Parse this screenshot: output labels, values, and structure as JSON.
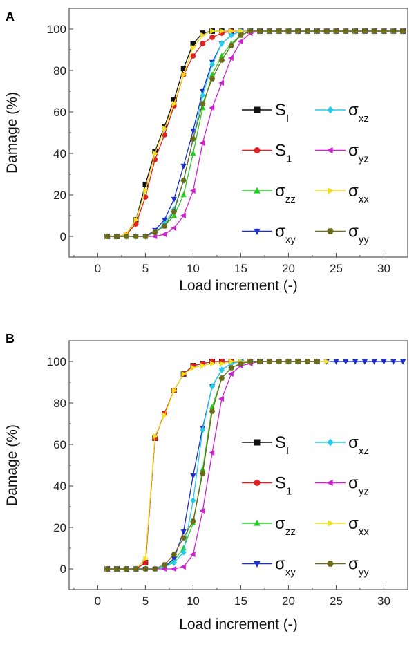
{
  "chart_data": [
    {
      "type": "line",
      "panel_label": "A",
      "xlabel": "Load increment (-)",
      "ylabel": "Damage (%)",
      "xlim": [
        -3,
        32.5
      ],
      "ylim": [
        -10,
        110
      ],
      "x_ticks": [
        0,
        5,
        10,
        15,
        20,
        25,
        30
      ],
      "y_ticks": [
        0,
        20,
        40,
        60,
        80,
        100
      ],
      "x_tick_labels": [
        "0",
        "5",
        "10",
        "15",
        "20",
        "25",
        "30"
      ],
      "y_tick_labels": [
        "0",
        "20",
        "40",
        "60",
        "80",
        "100"
      ],
      "x": [
        1,
        2,
        3,
        4,
        5,
        6,
        7,
        8,
        9,
        10,
        11,
        12,
        13,
        14,
        15,
        16,
        17,
        18,
        19,
        20,
        21,
        22,
        23,
        24,
        25,
        26,
        27,
        28,
        29,
        30,
        31,
        32
      ],
      "series": [
        {
          "name": "SI",
          "label_main": "S",
          "label_sub": "I",
          "color": "#111111",
          "marker": "square",
          "values": [
            0,
            0,
            1,
            8,
            25,
            41,
            53,
            66,
            81,
            93,
            98,
            99,
            99,
            99,
            99,
            99,
            99,
            99,
            99,
            99,
            99,
            99,
            99,
            99,
            99,
            99,
            99,
            99,
            99,
            99,
            99,
            99
          ]
        },
        {
          "name": "S1",
          "label_main": "S",
          "label_sub": "1",
          "color": "#e02020",
          "marker": "circle",
          "values": [
            0,
            0,
            1,
            6,
            19,
            37,
            49,
            63,
            78,
            87,
            93,
            96,
            98,
            99,
            99,
            99,
            99,
            99,
            99,
            99,
            99,
            99,
            99,
            99,
            99,
            99,
            99,
            99,
            99,
            99,
            99,
            99
          ]
        },
        {
          "name": "σzz",
          "label_main": "σ",
          "label_sub": "zz",
          "color": "#22cc22",
          "marker": "triangle-up",
          "values": [
            0,
            0,
            0,
            0,
            0,
            2,
            5,
            10,
            20,
            40,
            62,
            78,
            87,
            93,
            97,
            99,
            99,
            99,
            99,
            99,
            99,
            99,
            99,
            99,
            99,
            99,
            99,
            99,
            99,
            99,
            99,
            99
          ]
        },
        {
          "name": "σxy",
          "label_main": "σ",
          "label_sub": "xy",
          "color": "#1a2ec8",
          "marker": "triangle-down",
          "values": [
            0,
            0,
            0,
            0,
            0,
            3,
            8,
            18,
            34,
            51,
            70,
            84,
            93,
            97,
            99,
            99,
            99,
            99,
            99,
            99,
            99,
            99,
            99,
            99,
            99,
            99,
            99,
            99,
            99,
            99,
            99,
            99
          ]
        },
        {
          "name": "σxz",
          "label_main": "σ",
          "label_sub": "xz",
          "color": "#22cce8",
          "marker": "diamond",
          "values": [
            0,
            0,
            0,
            0,
            0,
            2,
            6,
            13,
            27,
            47,
            68,
            83,
            93,
            97,
            99,
            99,
            99,
            99,
            99,
            99,
            99,
            99,
            99,
            99,
            99,
            99,
            99,
            99,
            99,
            99,
            99,
            99
          ]
        },
        {
          "name": "σyz",
          "label_main": "σ",
          "label_sub": "yz",
          "color": "#cc22cc",
          "marker": "triangle-left",
          "values": [
            0,
            0,
            0,
            0,
            0,
            0,
            1,
            4,
            10,
            22,
            45,
            62,
            74,
            86,
            94,
            98,
            99,
            99,
            99,
            99,
            99,
            99,
            99,
            99,
            99,
            99,
            99,
            99,
            99,
            99,
            99,
            99
          ]
        },
        {
          "name": "σxx",
          "label_main": "σ",
          "label_sub": "xx",
          "color": "#f0e020",
          "marker": "triangle-right",
          "values": [
            0,
            0,
            1,
            8,
            22,
            40,
            52,
            64,
            78,
            91,
            97,
            99,
            99,
            99,
            99,
            99,
            99,
            99,
            99,
            99,
            99,
            99,
            99,
            99,
            99,
            99,
            99,
            99,
            99,
            99,
            99,
            99
          ]
        },
        {
          "name": "σyy",
          "label_main": "σ",
          "label_sub": "yy",
          "color": "#6b6b1a",
          "marker": "hexagon",
          "values": [
            0,
            0,
            0,
            0,
            0,
            2,
            5,
            12,
            27,
            47,
            64,
            76,
            85,
            92,
            97,
            99,
            99,
            99,
            99,
            99,
            99,
            99,
            99,
            99,
            99,
            99,
            99,
            99,
            99,
            99,
            99,
            99
          ]
        }
      ]
    },
    {
      "type": "line",
      "panel_label": "B",
      "xlabel": "Load increment (-)",
      "ylabel": "Damage (%)",
      "xlim": [
        -3,
        32.5
      ],
      "ylim": [
        -10,
        110
      ],
      "x_ticks": [
        0,
        5,
        10,
        15,
        20,
        25,
        30
      ],
      "y_ticks": [
        0,
        20,
        40,
        60,
        80,
        100
      ],
      "x_tick_labels": [
        "0",
        "5",
        "10",
        "15",
        "20",
        "25",
        "30"
      ],
      "y_tick_labels": [
        "0",
        "20",
        "40",
        "60",
        "80",
        "100"
      ],
      "x": [
        1,
        2,
        3,
        4,
        5,
        6,
        7,
        8,
        9,
        10,
        11,
        12,
        13,
        14,
        15,
        16,
        17,
        18,
        19,
        20,
        21,
        22,
        23,
        24,
        25,
        26,
        27,
        28,
        29,
        30,
        31,
        32
      ],
      "series": [
        {
          "name": "SI",
          "label_main": "S",
          "label_sub": "I",
          "color": "#111111",
          "marker": "square",
          "values": [
            0,
            0,
            0,
            0,
            3,
            63,
            75,
            86,
            94,
            98,
            99,
            100,
            100,
            100,
            100,
            100,
            100,
            100,
            100,
            100,
            100,
            100,
            100,
            null,
            null,
            null,
            null,
            null,
            null,
            null,
            null,
            null
          ]
        },
        {
          "name": "S1",
          "label_main": "S",
          "label_sub": "1",
          "color": "#e02020",
          "marker": "circle",
          "values": [
            0,
            0,
            0,
            0,
            3,
            63,
            75,
            86,
            94,
            98,
            99,
            100,
            100,
            100,
            100,
            100,
            100,
            100,
            100,
            100,
            100,
            100,
            100,
            null,
            null,
            null,
            null,
            null,
            null,
            null,
            null,
            null
          ]
        },
        {
          "name": "σzz",
          "label_main": "σ",
          "label_sub": "zz",
          "color": "#22cc22",
          "marker": "triangle-up",
          "values": [
            0,
            0,
            0,
            0,
            0,
            0,
            1,
            4,
            10,
            22,
            48,
            78,
            92,
            97,
            99,
            100,
            100,
            100,
            100,
            100,
            100,
            100,
            100,
            null,
            null,
            null,
            null,
            null,
            null,
            null,
            null,
            null
          ]
        },
        {
          "name": "σxy",
          "label_main": "σ",
          "label_sub": "xy",
          "color": "#1a2ec8",
          "marker": "triangle-down",
          "values": [
            0,
            0,
            0,
            0,
            0,
            0,
            1,
            5,
            18,
            45,
            68,
            88,
            96,
            99,
            100,
            100,
            100,
            100,
            100,
            100,
            100,
            100,
            100,
            100,
            100,
            100,
            100,
            100,
            100,
            100,
            100,
            100
          ]
        },
        {
          "name": "σxz",
          "label_main": "σ",
          "label_sub": "xz",
          "color": "#22cce8",
          "marker": "diamond",
          "values": [
            0,
            0,
            0,
            0,
            0,
            0,
            1,
            3,
            8,
            33,
            67,
            88,
            96,
            99,
            100,
            100,
            100,
            100,
            100,
            100,
            100,
            100,
            100,
            null,
            null,
            null,
            null,
            null,
            null,
            null,
            null,
            null
          ]
        },
        {
          "name": "σyz",
          "label_main": "σ",
          "label_sub": "yz",
          "color": "#cc22cc",
          "marker": "triangle-left",
          "values": [
            0,
            0,
            0,
            0,
            0,
            0,
            0,
            0,
            1,
            7,
            28,
            56,
            82,
            94,
            98,
            99,
            100,
            100,
            100,
            100,
            100,
            100,
            100,
            null,
            null,
            null,
            null,
            null,
            null,
            null,
            null,
            null
          ]
        },
        {
          "name": "σxx",
          "label_main": "σ",
          "label_sub": "xx",
          "color": "#f0e020",
          "marker": "triangle-right",
          "values": [
            0,
            0,
            0,
            0,
            5,
            64,
            74,
            86,
            94,
            97,
            98,
            99,
            99,
            100,
            100,
            100,
            100,
            100,
            100,
            100,
            100,
            100,
            100,
            100,
            null,
            null,
            null,
            null,
            null,
            null,
            null,
            null
          ]
        },
        {
          "name": "σyy",
          "label_main": "σ",
          "label_sub": "yy",
          "color": "#6b6b1a",
          "marker": "hexagon",
          "values": [
            0,
            0,
            0,
            0,
            0,
            0,
            2,
            7,
            15,
            23,
            46,
            76,
            92,
            97,
            99,
            100,
            100,
            100,
            100,
            100,
            100,
            100,
            100,
            null,
            null,
            null,
            null,
            null,
            null,
            null,
            null,
            null
          ]
        }
      ]
    }
  ]
}
